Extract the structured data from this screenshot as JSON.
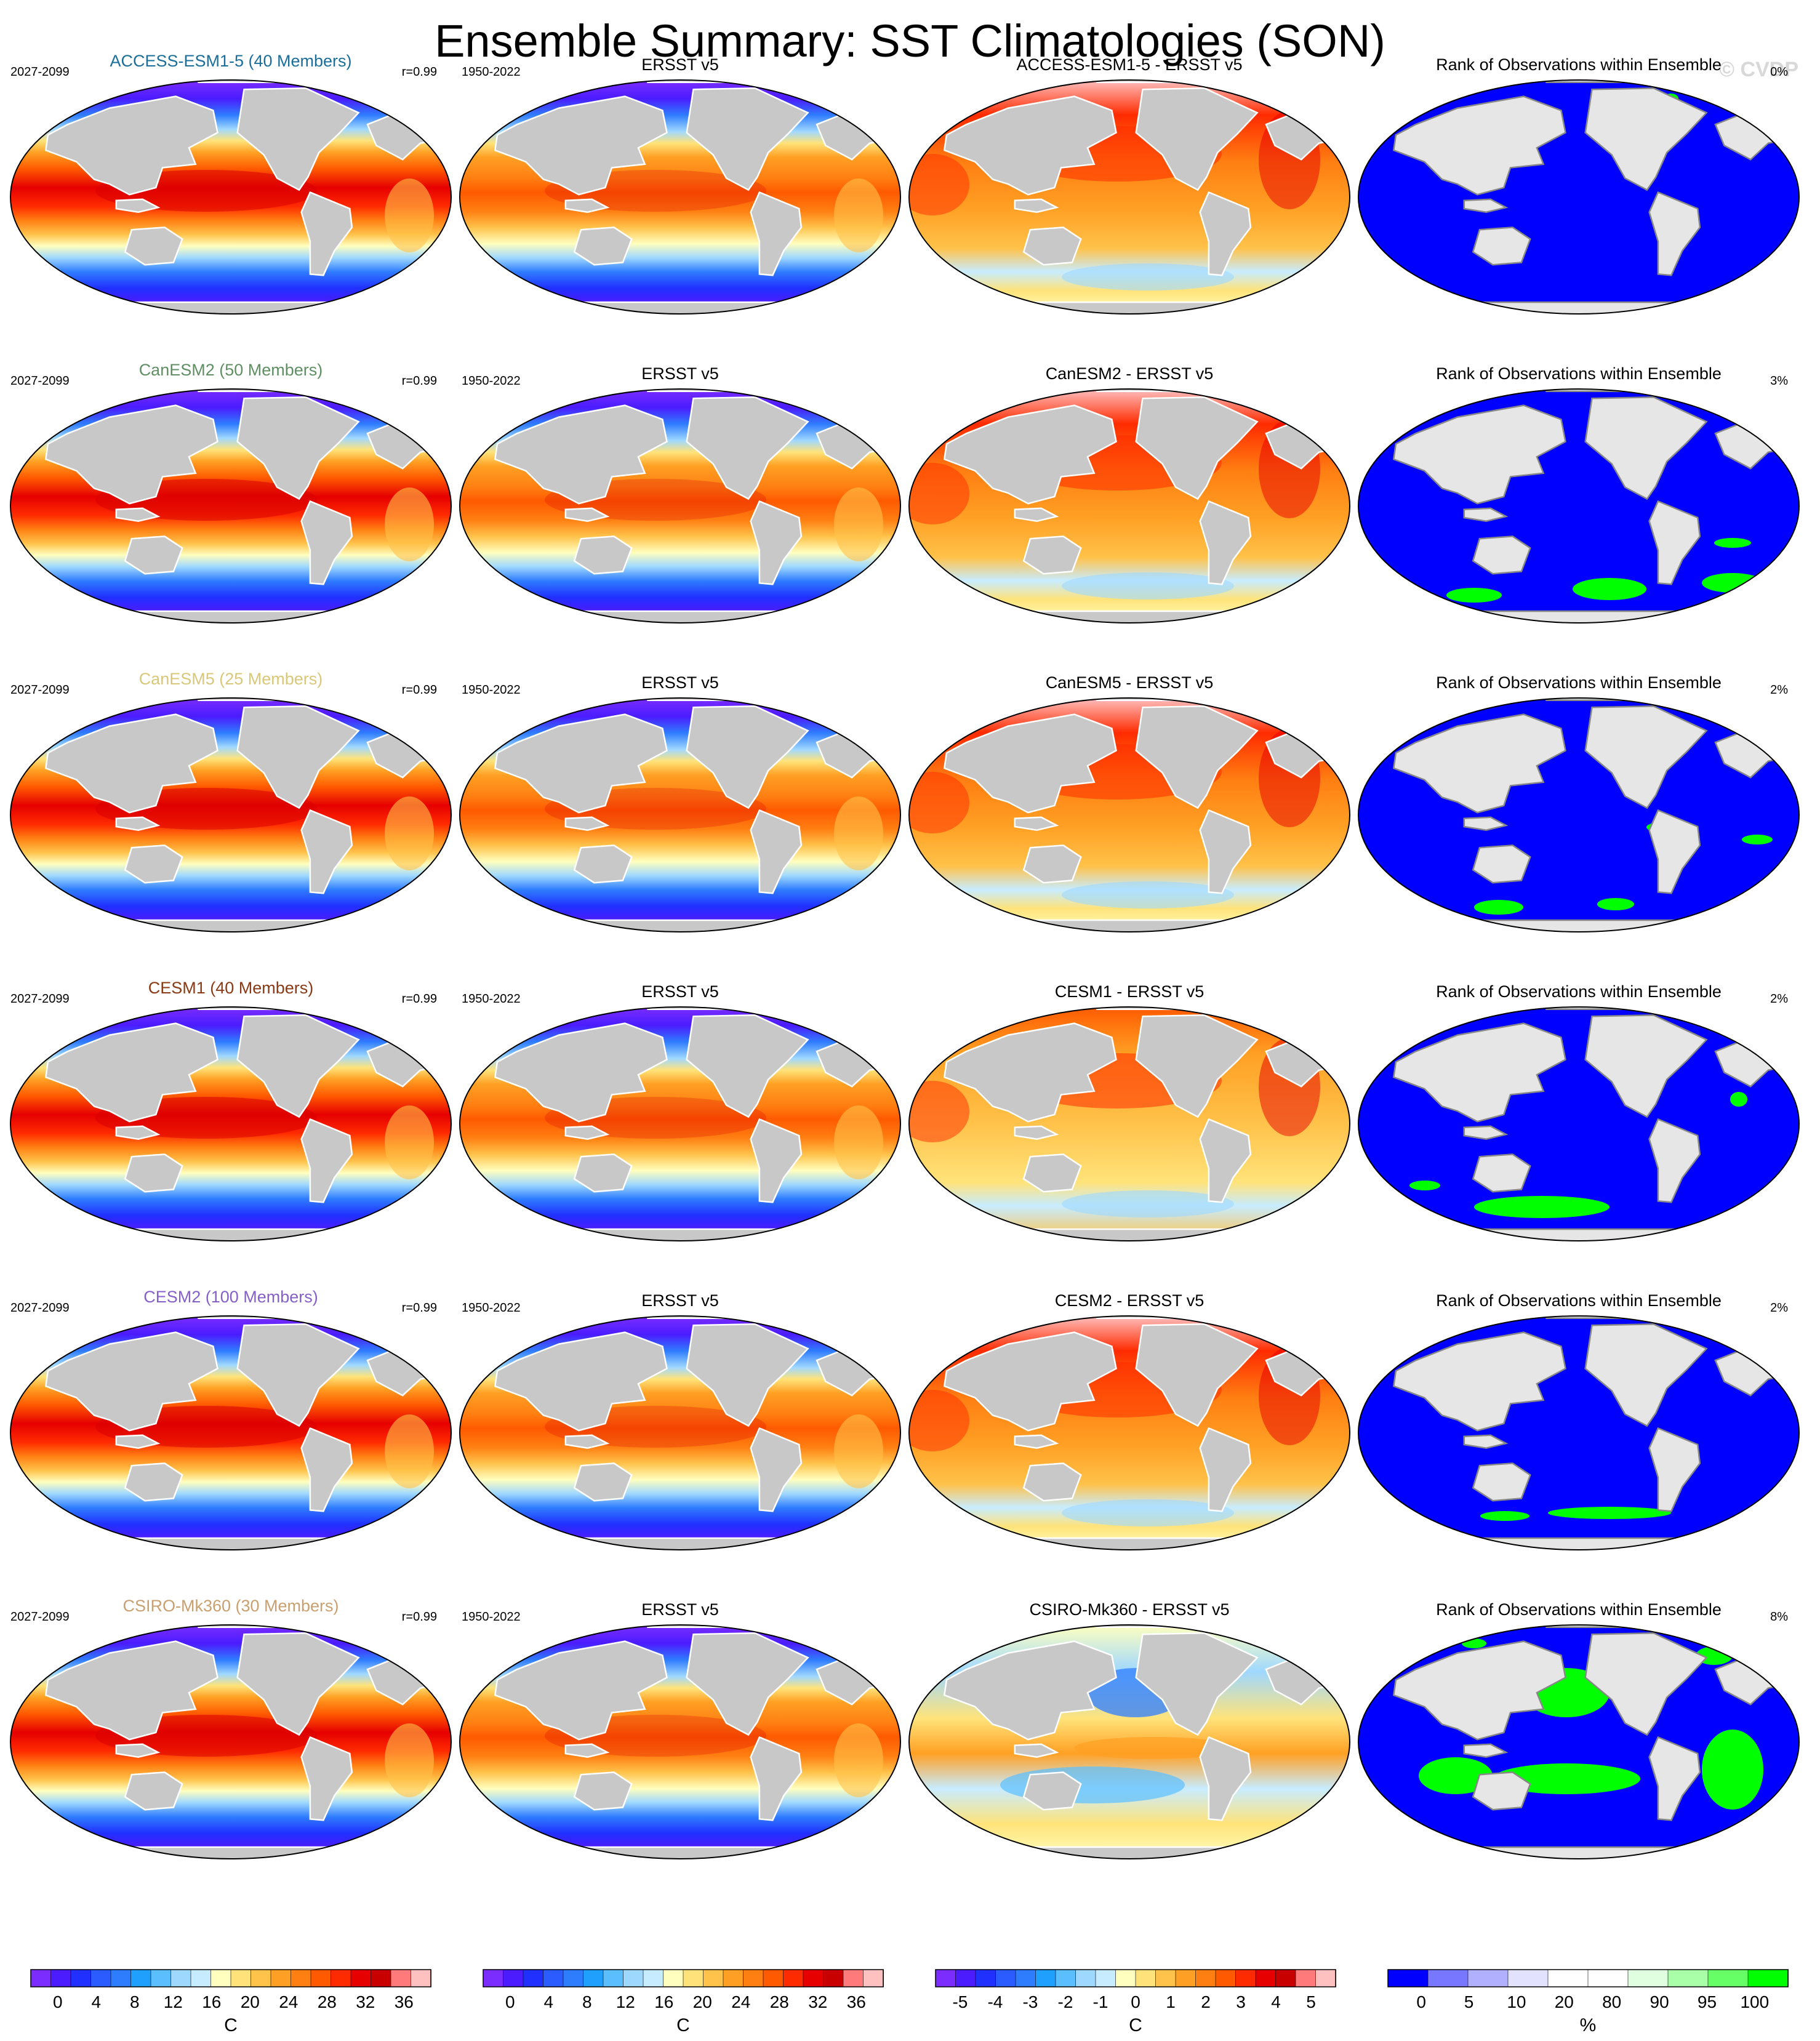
{
  "title": "Ensemble Summary: SST Climatologies (SON)",
  "watermark": "© CVDP",
  "observation": {
    "name": "ERSST v5",
    "period": "1950-2022"
  },
  "rank_panel_title": "Rank of Observations within Ensemble",
  "rows": [
    {
      "model": "ACCESS-ESM1-5 (40 Members)",
      "color": "#1b6e9a",
      "period": "2027-2099",
      "corr": "r=0.99",
      "diff_title": "ACCESS-ESM1-5 - ERSST v5",
      "rank_pct": "0%"
    },
    {
      "model": "CanESM2 (50 Members)",
      "color": "#5f8f63",
      "period": "2027-2099",
      "corr": "r=0.99",
      "diff_title": "CanESM2 - ERSST v5",
      "rank_pct": "3%"
    },
    {
      "model": "CanESM5 (25 Members)",
      "color": "#d9c77a",
      "period": "2027-2099",
      "corr": "r=0.99",
      "diff_title": "CanESM5 - ERSST v5",
      "rank_pct": "2%"
    },
    {
      "model": "CESM1 (40 Members)",
      "color": "#8a3a14",
      "period": "2027-2099",
      "corr": "r=0.99",
      "diff_title": "CESM1 - ERSST v5",
      "rank_pct": "2%"
    },
    {
      "model": "CESM2 (100 Members)",
      "color": "#8560c8",
      "period": "2027-2099",
      "corr": "r=0.99",
      "diff_title": "CESM2 - ERSST v5",
      "rank_pct": "2%"
    },
    {
      "model": "CSIRO-Mk360 (30 Members)",
      "color": "#c9a070",
      "period": "2027-2099",
      "corr": "r=0.99",
      "diff_title": "CSIRO-Mk360 - ERSST v5",
      "rank_pct": "8%"
    }
  ],
  "colorbars": [
    {
      "unit": "C",
      "ticks": [
        "0",
        "4",
        "8",
        "12",
        "16",
        "20",
        "24",
        "28",
        "32",
        "36"
      ],
      "colors": [
        "#7b2dff",
        "#4a1cff",
        "#2030ff",
        "#2b5cff",
        "#2f7dff",
        "#1fa0ff",
        "#5bbfff",
        "#9fd8ff",
        "#c8ecff",
        "#ffffbf",
        "#ffe37a",
        "#ffc24a",
        "#ffa024",
        "#ff7f12",
        "#ff5a00",
        "#ff2b00",
        "#e60000",
        "#c80000",
        "#ff7b7b",
        "#ffc0c0"
      ]
    },
    {
      "unit": "C",
      "ticks": [
        "0",
        "4",
        "8",
        "12",
        "16",
        "20",
        "24",
        "28",
        "32",
        "36"
      ],
      "colors": [
        "#7b2dff",
        "#4a1cff",
        "#2030ff",
        "#2b5cff",
        "#2f7dff",
        "#1fa0ff",
        "#5bbfff",
        "#9fd8ff",
        "#c8ecff",
        "#ffffbf",
        "#ffe37a",
        "#ffc24a",
        "#ffa024",
        "#ff7f12",
        "#ff5a00",
        "#ff2b00",
        "#e60000",
        "#c80000",
        "#ff7b7b",
        "#ffc0c0"
      ]
    },
    {
      "unit": "C",
      "ticks": [
        "-5",
        "-4",
        "-3",
        "-2",
        "-1",
        "0",
        "1",
        "2",
        "3",
        "4",
        "5"
      ],
      "colors": [
        "#7b2dff",
        "#4a1cff",
        "#2030ff",
        "#2b5cff",
        "#2f7dff",
        "#1fa0ff",
        "#5bbfff",
        "#9fd8ff",
        "#c8ecff",
        "#ffffbf",
        "#ffe37a",
        "#ffc24a",
        "#ffa024",
        "#ff7f12",
        "#ff5a00",
        "#ff2b00",
        "#e60000",
        "#c80000",
        "#ff7b7b",
        "#ffc0c0"
      ]
    },
    {
      "unit": "%",
      "ticks": [
        "0",
        "5",
        "10",
        "20",
        "80",
        "90",
        "95",
        "100"
      ],
      "colors": [
        "#0000ff",
        "#7777ff",
        "#b0b0ff",
        "#e2e2ff",
        "#ffffff",
        "#ffffff",
        "#e0ffe0",
        "#a8ffa8",
        "#66ff66",
        "#00ff00"
      ]
    }
  ],
  "colors": {
    "land": "#c8c8c8",
    "land_light": "#e6e6e6",
    "rank_blue": "#0000ff",
    "rank_green": "#00ff00"
  }
}
